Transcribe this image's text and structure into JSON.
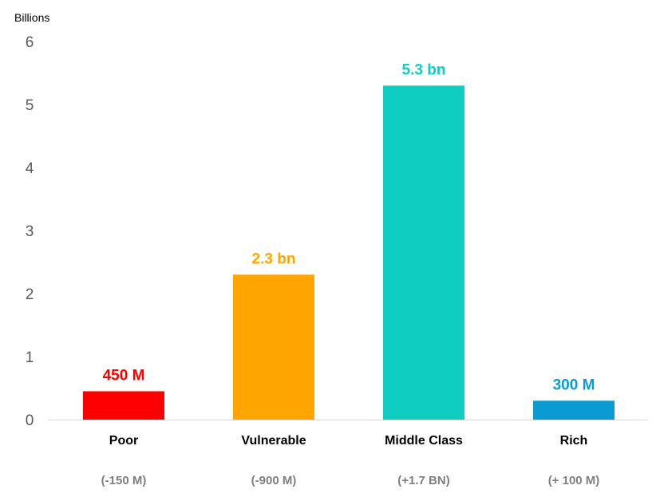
{
  "chart_data": {
    "type": "bar",
    "ylabel": "Billions",
    "ylim": [
      0,
      6
    ],
    "yticks": [
      "0",
      "1",
      "2",
      "3",
      "4",
      "5",
      "6"
    ],
    "grid": false,
    "categories": [
      "Poor",
      "Vulnerable",
      "Middle Class",
      "Rich"
    ],
    "sublabels": [
      "(-150 M)",
      "(-900 M)",
      "(+1.7 BN)",
      "(+ 100 M)"
    ],
    "values": [
      0.45,
      2.3,
      5.3,
      0.3
    ],
    "data_labels": [
      "450 M",
      "2.3 bn",
      "5.3 bn",
      "300 M"
    ],
    "colors": [
      "#FF0000",
      "#FFA500",
      "#10CDC1",
      "#0B9BD0"
    ],
    "label_colors": [
      "#FF0000",
      "#FFA500",
      "#10CDC1",
      "#0B9BD0"
    ]
  }
}
